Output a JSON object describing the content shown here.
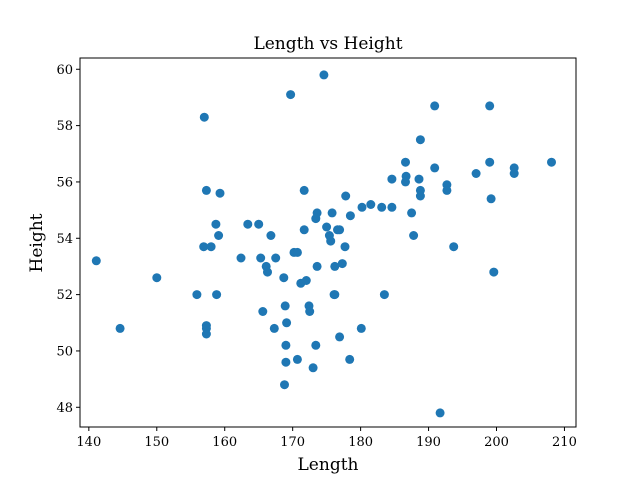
{
  "chart_data": {
    "type": "scatter",
    "title": "Length vs Height",
    "xlabel": "Length",
    "ylabel": "Height",
    "xlim": [
      138.7,
      211.7
    ],
    "ylim": [
      47.3,
      60.4
    ],
    "xticks": [
      140,
      150,
      160,
      170,
      180,
      190,
      200,
      210
    ],
    "yticks": [
      48,
      50,
      52,
      54,
      56,
      58,
      60
    ],
    "grid": false,
    "color": "#1f77b4",
    "points": [
      [
        141.1,
        53.2
      ],
      [
        144.6,
        50.8
      ],
      [
        150.0,
        52.6
      ],
      [
        155.9,
        52.0
      ],
      [
        157.0,
        58.3
      ],
      [
        156.9,
        53.7
      ],
      [
        157.3,
        55.7
      ],
      [
        157.3,
        50.9
      ],
      [
        157.3,
        50.6
      ],
      [
        157.3,
        50.8
      ],
      [
        158.0,
        53.7
      ],
      [
        158.7,
        54.5
      ],
      [
        158.8,
        52.0
      ],
      [
        159.1,
        54.1
      ],
      [
        159.3,
        55.6
      ],
      [
        162.4,
        53.3
      ],
      [
        163.4,
        54.5
      ],
      [
        165.0,
        54.5
      ],
      [
        165.3,
        53.3
      ],
      [
        165.6,
        51.4
      ],
      [
        166.1,
        53.0
      ],
      [
        166.3,
        52.8
      ],
      [
        166.8,
        54.1
      ],
      [
        167.3,
        50.8
      ],
      [
        167.5,
        53.3
      ],
      [
        168.7,
        52.6
      ],
      [
        168.9,
        51.6
      ],
      [
        169.0,
        50.2
      ],
      [
        169.1,
        51.0
      ],
      [
        169.0,
        49.6
      ],
      [
        168.8,
        48.8
      ],
      [
        169.7,
        59.1
      ],
      [
        170.2,
        53.5
      ],
      [
        170.7,
        53.5
      ],
      [
        170.7,
        49.7
      ],
      [
        171.2,
        52.4
      ],
      [
        171.7,
        55.7
      ],
      [
        171.7,
        54.3
      ],
      [
        172.0,
        52.5
      ],
      [
        172.4,
        51.6
      ],
      [
        172.5,
        51.4
      ],
      [
        173.0,
        49.4
      ],
      [
        173.4,
        50.2
      ],
      [
        173.4,
        54.7
      ],
      [
        173.6,
        54.9
      ],
      [
        173.6,
        53.0
      ],
      [
        174.6,
        59.8
      ],
      [
        175.0,
        54.4
      ],
      [
        175.4,
        54.1
      ],
      [
        175.6,
        53.9
      ],
      [
        175.8,
        54.9
      ],
      [
        176.1,
        52.0
      ],
      [
        176.2,
        52.0
      ],
      [
        176.2,
        53.0
      ],
      [
        176.6,
        54.3
      ],
      [
        176.9,
        54.3
      ],
      [
        176.9,
        50.5
      ],
      [
        177.3,
        53.1
      ],
      [
        177.7,
        53.7
      ],
      [
        177.8,
        55.5
      ],
      [
        178.4,
        49.7
      ],
      [
        178.5,
        54.8
      ],
      [
        180.2,
        55.1
      ],
      [
        180.1,
        50.8
      ],
      [
        181.5,
        55.2
      ],
      [
        183.1,
        55.1
      ],
      [
        183.5,
        52.0
      ],
      [
        184.6,
        56.1
      ],
      [
        184.6,
        55.1
      ],
      [
        186.6,
        56.7
      ],
      [
        186.7,
        56.2
      ],
      [
        186.6,
        56.0
      ],
      [
        187.5,
        54.9
      ],
      [
        187.8,
        54.1
      ],
      [
        188.6,
        56.1
      ],
      [
        188.8,
        57.5
      ],
      [
        188.8,
        55.7
      ],
      [
        188.8,
        55.5
      ],
      [
        190.9,
        58.7
      ],
      [
        190.9,
        56.5
      ],
      [
        191.7,
        47.8
      ],
      [
        192.7,
        55.9
      ],
      [
        192.7,
        55.7
      ],
      [
        193.7,
        53.7
      ],
      [
        197.0,
        56.3
      ],
      [
        199.0,
        58.7
      ],
      [
        199.0,
        56.7
      ],
      [
        199.2,
        55.4
      ],
      [
        199.6,
        52.8
      ],
      [
        202.6,
        56.5
      ],
      [
        202.6,
        56.3
      ],
      [
        208.1,
        56.7
      ]
    ]
  }
}
